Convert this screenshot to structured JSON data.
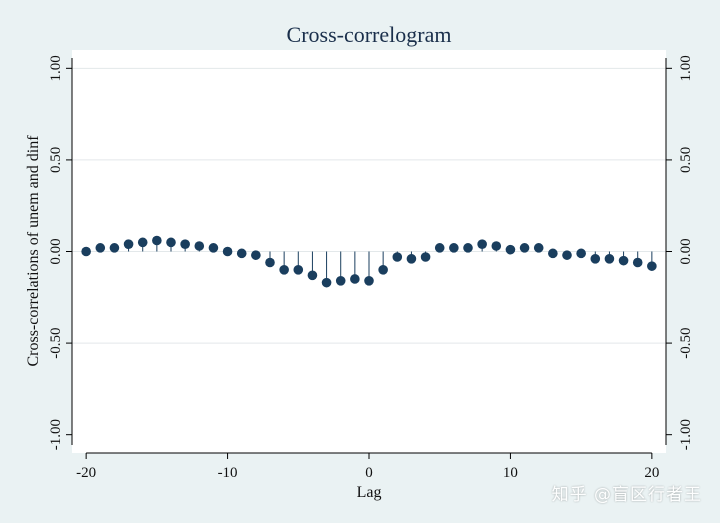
{
  "chart_data": {
    "type": "scatter",
    "title": "Cross-correlogram",
    "xlabel": "Lag",
    "ylabel": "Cross-correlations of unem and dinf",
    "xlim": [
      -21,
      21
    ],
    "ylim": [
      -1.1,
      1.1
    ],
    "xticks": [
      -20,
      -10,
      0,
      10,
      20
    ],
    "xtick_labels": [
      "-20",
      "-10",
      "0",
      "10",
      "20"
    ],
    "yticks": [
      -1.0,
      -0.5,
      0.0,
      0.5,
      1.0
    ],
    "ytick_labels": [
      "-1.00",
      "-0.50",
      "0.00",
      "0.50",
      "1.00"
    ],
    "grid": true,
    "right_axis": true,
    "style": "spike",
    "marker_color": "#1a3e5e",
    "x": [
      -20,
      -19,
      -18,
      -17,
      -16,
      -15,
      -14,
      -13,
      -12,
      -11,
      -10,
      -9,
      -8,
      -7,
      -6,
      -5,
      -4,
      -3,
      -2,
      -1,
      0,
      1,
      2,
      3,
      4,
      5,
      6,
      7,
      8,
      9,
      10,
      11,
      12,
      13,
      14,
      15,
      16,
      17,
      18,
      19,
      20
    ],
    "y": [
      0.0,
      0.02,
      0.02,
      0.04,
      0.05,
      0.06,
      0.05,
      0.04,
      0.03,
      0.02,
      0.0,
      -0.01,
      -0.02,
      -0.06,
      -0.1,
      -0.1,
      -0.13,
      -0.17,
      -0.16,
      -0.15,
      -0.16,
      -0.1,
      -0.03,
      -0.04,
      -0.03,
      0.02,
      0.02,
      0.02,
      0.04,
      0.03,
      0.01,
      0.02,
      0.02,
      -0.01,
      -0.02,
      -0.01,
      -0.04,
      -0.04,
      -0.05,
      -0.06,
      -0.08
    ]
  },
  "watermark": "知乎 @盲区行者王"
}
